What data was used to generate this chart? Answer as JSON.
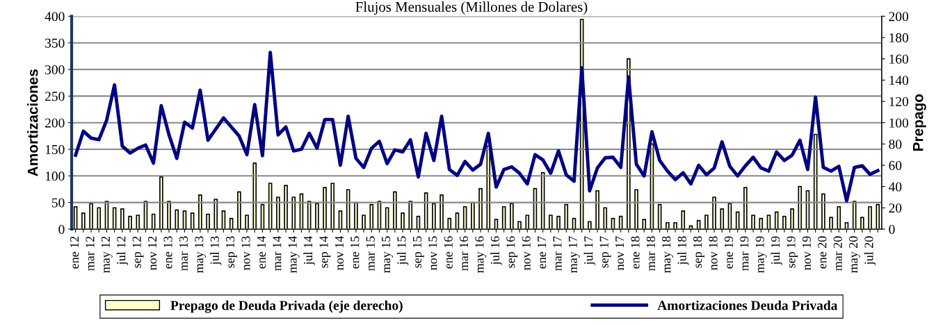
{
  "chart_data": {
    "type": "line",
    "title": "Flujos Mensuales (Millones de Dolares)",
    "ylabel": "Amortizaciones",
    "y2label": "Prepago",
    "categories": [
      "ene 12",
      null,
      "mar 12",
      null,
      "may 12",
      null,
      "jul 12",
      null,
      "sep 12",
      null,
      "nov 12",
      null,
      "ene 13",
      null,
      "mar 13",
      null,
      "may 13",
      null,
      "jul 13",
      null,
      "sep 13",
      null,
      "nov 13",
      null,
      "ene 14",
      null,
      "mar 14",
      null,
      "may 14",
      null,
      "jul 14",
      null,
      "sep 14",
      null,
      "nov 14",
      null,
      "ene 15",
      null,
      "mar 15",
      null,
      "may 15",
      null,
      "jul 15",
      null,
      "sep 15",
      null,
      "nov 15",
      null,
      "ene 16",
      null,
      "mar 16",
      null,
      "may 16",
      null,
      "jul 16",
      null,
      "sep 16",
      null,
      "nov 16",
      null,
      "ene 17",
      null,
      "mar 17",
      null,
      "may 17",
      null,
      "jul 17",
      null,
      "sep 17",
      null,
      "nov 17",
      null,
      "ene 18",
      null,
      "mar 18",
      null,
      "may 18",
      null,
      "jul 18",
      null,
      "sep 18",
      null,
      "nov 18",
      null,
      "ene 19",
      null,
      "mar 19",
      null,
      "may 19",
      null,
      "jul 19",
      null,
      "sep 19",
      null,
      "nov 19",
      null,
      "ene 20",
      null,
      "mar 20",
      null,
      "may 20",
      null,
      "jul 20",
      null
    ],
    "series": [
      {
        "name": "Prepago de Deuda Privada (eje derecho)",
        "type": "bar",
        "axis": "y2",
        "color": "#ffffcc",
        "values": [
          21,
          15,
          24,
          20,
          26,
          20,
          19,
          12,
          13,
          26,
          14,
          49,
          26,
          18,
          17,
          15,
          32,
          14,
          28,
          17,
          10,
          35,
          13,
          62,
          23,
          43,
          30,
          41,
          30,
          33,
          26,
          24,
          39,
          43,
          17,
          37,
          25,
          13,
          23,
          26,
          20,
          35,
          15,
          26,
          12,
          34,
          24,
          32,
          10,
          15,
          21,
          25,
          38,
          78,
          9,
          21,
          24,
          7,
          13,
          38,
          53,
          13,
          12,
          23,
          10,
          197,
          7,
          36,
          20,
          10,
          12,
          160,
          37,
          9,
          80,
          23,
          6,
          6,
          17,
          3,
          8,
          13,
          30,
          19,
          24,
          16,
          39,
          13,
          10,
          13,
          16,
          12,
          19,
          40,
          36,
          89,
          33,
          11,
          21,
          6,
          26,
          11,
          21,
          23
        ]
      },
      {
        "name": "Amortizaciones Deuda Privada",
        "color": "#000080",
        "values": [
          139,
          184,
          171,
          168,
          205,
          271,
          156,
          143,
          152,
          158,
          124,
          232,
          177,
          133,
          201,
          190,
          261,
          167,
          188,
          209,
          192,
          175,
          140,
          234,
          138,
          332,
          177,
          192,
          147,
          150,
          180,
          152,
          206,
          206,
          120,
          212,
          133,
          116,
          152,
          165,
          123,
          149,
          145,
          168,
          98,
          180,
          129,
          212,
          112,
          101,
          127,
          111,
          122,
          180,
          79,
          112,
          117,
          105,
          85,
          140,
          130,
          105,
          147,
          102,
          90,
          303,
          72,
          115,
          134,
          135,
          116,
          286,
          122,
          100,
          183,
          129,
          109,
          93,
          106,
          85,
          120,
          102,
          115,
          164,
          118,
          100,
          119,
          135,
          115,
          109,
          145,
          129,
          139,
          167,
          112,
          248,
          116,
          109,
          118,
          53,
          116,
          119,
          103,
          110
        ]
      }
    ],
    "ylim": [
      0,
      400
    ],
    "yticks": [
      0,
      50,
      100,
      150,
      200,
      250,
      300,
      350,
      400
    ],
    "y2lim": [
      0,
      200
    ],
    "y2ticks": [
      0,
      20,
      40,
      60,
      80,
      100,
      120,
      140,
      160,
      180,
      200
    ],
    "grid": "y",
    "legend": "bottom",
    "marker": "none",
    "line_style": "solid"
  }
}
